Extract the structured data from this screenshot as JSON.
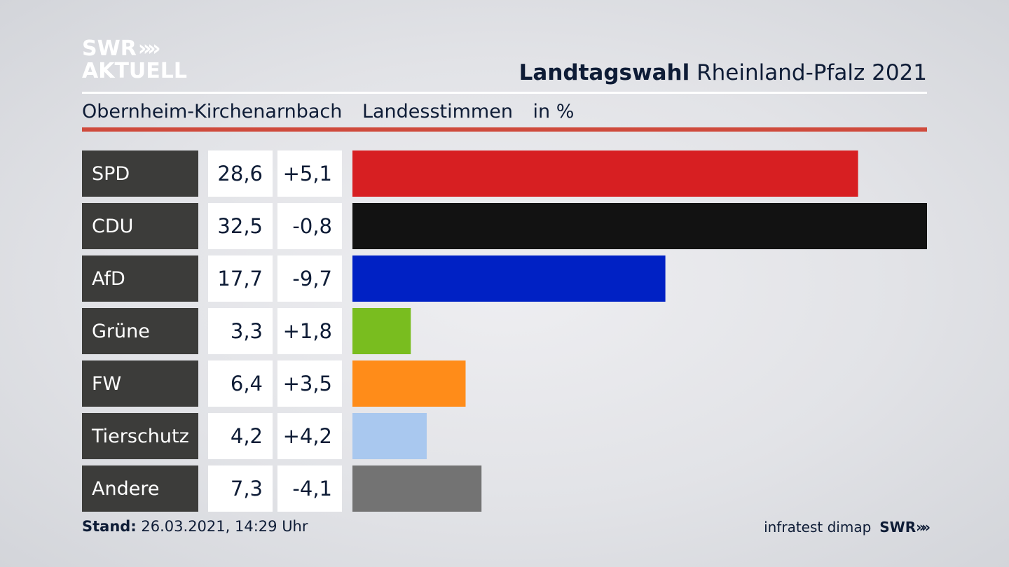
{
  "header": {
    "logo_line1": "SWR",
    "logo_chevrons": "»",
    "logo_line2": "AKTUELL",
    "title_bold": "Landtagswahl",
    "title_rest": "Rheinland-Pfalz 2021"
  },
  "subtitle": {
    "place": "Obernheim-Kirchenarnbach",
    "metric": "Landesstimmen",
    "unit": "in %"
  },
  "footer": {
    "stand_label": "Stand:",
    "stand_value": "26.03.2021, 14:29 Uhr",
    "source": "infratest dimap",
    "brand": "SWR",
    "brand_chevrons": "»"
  },
  "colors": {
    "label_bg": "#3c3c3a",
    "value_bg": "#ffffff",
    "accent_rule": "#cf4a3c"
  },
  "chart_data": {
    "type": "bar",
    "orientation": "horizontal",
    "categories": [
      "SPD",
      "CDU",
      "AfD",
      "Grüne",
      "FW",
      "Tierschutz",
      "Andere"
    ],
    "values": [
      28.6,
      32.5,
      17.7,
      3.3,
      6.4,
      4.2,
      7.3
    ],
    "values_text": [
      "28,6",
      "32,5",
      "17,7",
      "3,3",
      "6,4",
      "4,2",
      "7,3"
    ],
    "change_text": [
      "+5,1",
      "-0,8",
      "-9,7",
      "+1,8",
      "+3,5",
      "+4,2",
      "-4,1"
    ],
    "changes": [
      5.1,
      -0.8,
      -9.7,
      1.8,
      3.5,
      4.2,
      -4.1
    ],
    "bar_colors": [
      "#d71f22",
      "#121212",
      "#0021c4",
      "#79bd1f",
      "#ff8c19",
      "#a9c8ef",
      "#737373"
    ],
    "xlim": [
      0,
      32.5
    ],
    "grid": false,
    "legend": "none"
  }
}
